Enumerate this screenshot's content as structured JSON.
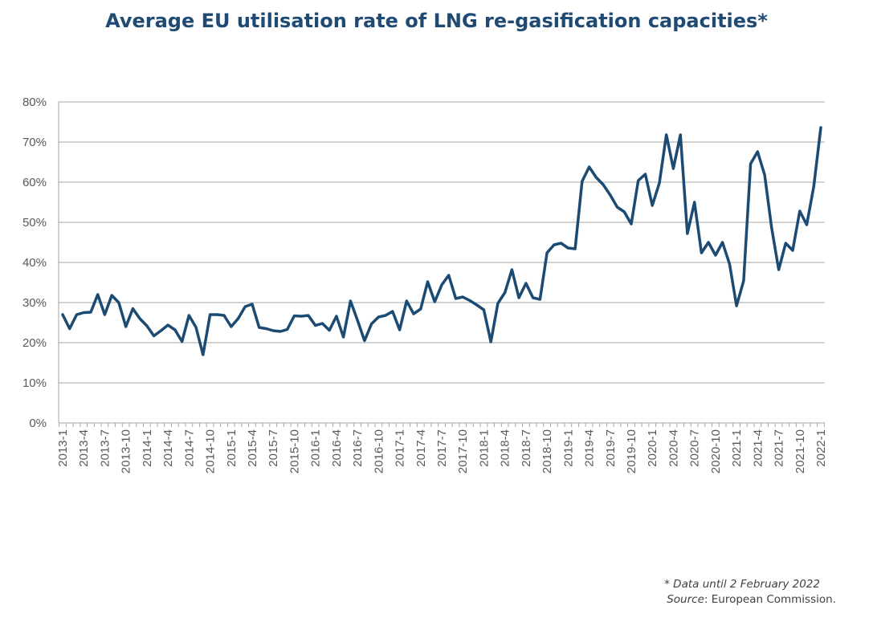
{
  "chart_data": {
    "type": "line",
    "title": "Average EU utilisation rate of LNG re-gasification capacities*",
    "xlabel": "",
    "ylabel": "",
    "ylim": [
      0,
      80
    ],
    "yticks": [
      "0%",
      "10%",
      "20%",
      "30%",
      "40%",
      "50%",
      "60%",
      "70%",
      "80%"
    ],
    "grid": true,
    "color": "#1b4a72",
    "categories": [
      "2013-1",
      "2013-2",
      "2013-3",
      "2013-4",
      "2013-5",
      "2013-6",
      "2013-7",
      "2013-8",
      "2013-9",
      "2013-10",
      "2013-11",
      "2013-12",
      "2014-1",
      "2014-2",
      "2014-3",
      "2014-4",
      "2014-5",
      "2014-6",
      "2014-7",
      "2014-8",
      "2014-9",
      "2014-10",
      "2014-11",
      "2014-12",
      "2015-1",
      "2015-2",
      "2015-3",
      "2015-4",
      "2015-5",
      "2015-6",
      "2015-7",
      "2015-8",
      "2015-9",
      "2015-10",
      "2015-11",
      "2015-12",
      "2016-1",
      "2016-2",
      "2016-3",
      "2016-4",
      "2016-5",
      "2016-6",
      "2016-7",
      "2016-8",
      "2016-9",
      "2016-10",
      "2016-11",
      "2016-12",
      "2017-1",
      "2017-2",
      "2017-3",
      "2017-4",
      "2017-5",
      "2017-6",
      "2017-7",
      "2017-8",
      "2017-9",
      "2017-10",
      "2017-11",
      "2017-12",
      "2018-1",
      "2018-2",
      "2018-3",
      "2018-4",
      "2018-5",
      "2018-6",
      "2018-7",
      "2018-8",
      "2018-9",
      "2018-10",
      "2018-11",
      "2018-12",
      "2019-1",
      "2019-2",
      "2019-3",
      "2019-4",
      "2019-5",
      "2019-6",
      "2019-7",
      "2019-8",
      "2019-9",
      "2019-10",
      "2019-11",
      "2019-12",
      "2020-1",
      "2020-2",
      "2020-3",
      "2020-4",
      "2020-5",
      "2020-6",
      "2020-7",
      "2020-8",
      "2020-9",
      "2020-10",
      "2020-11",
      "2020-12",
      "2021-1",
      "2021-2",
      "2021-3",
      "2021-4",
      "2021-5",
      "2021-6",
      "2021-7",
      "2021-8",
      "2021-9",
      "2021-10",
      "2021-11",
      "2021-12",
      "2022-1"
    ],
    "values": [
      27,
      23.5,
      27,
      27.5,
      27.6,
      32,
      27,
      31.8,
      30,
      24,
      28.5,
      26,
      24.2,
      21.7,
      23,
      24.4,
      23.2,
      20.3,
      26.8,
      23.8,
      17,
      27,
      27,
      26.8,
      24,
      26,
      29,
      29.6,
      23.8,
      23.5,
      23,
      22.8,
      23.3,
      26.7,
      26.6,
      26.8,
      24.3,
      24.8,
      23.1,
      26.6,
      21.4,
      30.4,
      25.6,
      20.5,
      24.7,
      26.4,
      26.8,
      27.8,
      23.2,
      30.4,
      27.2,
      28.4,
      35.2,
      30.2,
      34.4,
      36.8,
      31,
      31.4,
      30.5,
      29.4,
      28.2,
      20.2,
      29.8,
      32.5,
      38.2,
      31.2,
      34.8,
      31.2,
      30.8,
      42.4,
      44.4,
      44.8,
      43.6,
      43.4,
      60.2,
      63.8,
      61.2,
      59.4,
      56.8,
      53.8,
      52.6,
      49.6,
      60.4,
      62,
      54.2,
      59.8,
      71.8,
      63.4,
      71.8,
      47.2,
      55,
      42.4,
      45,
      41.8,
      45,
      39.6,
      29.2,
      35.4,
      64.6,
      67.6,
      61.8,
      48.6,
      38.2,
      44.8,
      43,
      52.8,
      49.4,
      59,
      73.6
    ]
  },
  "footnote": "* Data until 2 February 2022",
  "source_label": "Source",
  "source_text": ": European Commission."
}
